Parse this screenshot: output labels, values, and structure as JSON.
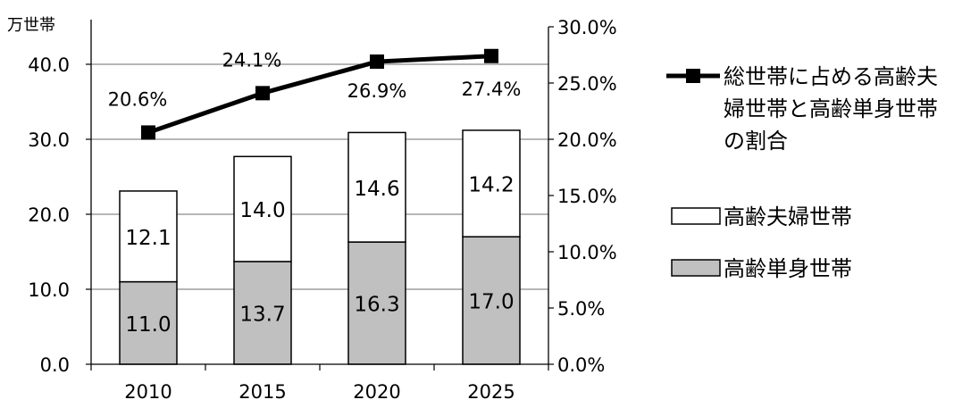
{
  "chart_data": {
    "type": "bar+line",
    "y_left_unit": "万世帯",
    "categories": [
      "2010",
      "2015",
      "2020",
      "2025"
    ],
    "ylim_left": [
      0,
      45
    ],
    "yticks_left": [
      "0.0",
      "10.0",
      "20.0",
      "30.0",
      "40.0"
    ],
    "ylim_right": [
      0,
      30
    ],
    "yticks_right": [
      "0.0%",
      "5.0%",
      "10.0%",
      "15.0%",
      "20.0%",
      "25.0%",
      "30.0%"
    ],
    "grid": true,
    "legend_position": "right",
    "series": [
      {
        "name": "高齢単身世帯",
        "type": "bar-stacked",
        "axis": "left",
        "color": "#c0c0c0",
        "values": [
          11.0,
          13.7,
          16.3,
          17.0
        ],
        "labels": [
          "11.0",
          "13.7",
          "16.3",
          "17.0"
        ]
      },
      {
        "name": "高齢夫婦世帯",
        "type": "bar-stacked",
        "axis": "left",
        "color": "#ffffff",
        "values": [
          12.1,
          14.0,
          14.6,
          14.2
        ],
        "labels": [
          "12.1",
          "14.0",
          "14.6",
          "14.2"
        ]
      },
      {
        "name": "総世帯に占める高齢夫婦世帯と高齢単身世帯の割合",
        "name_lines": [
          "総世帯に占める高齢夫",
          "婦世帯と高齢単身世帯",
          "の割合"
        ],
        "type": "line",
        "axis": "right",
        "color": "#000000",
        "values": [
          20.6,
          24.1,
          26.9,
          27.4
        ],
        "labels": [
          "20.6%",
          "24.1%",
          "26.9%",
          "27.4%"
        ]
      }
    ]
  }
}
